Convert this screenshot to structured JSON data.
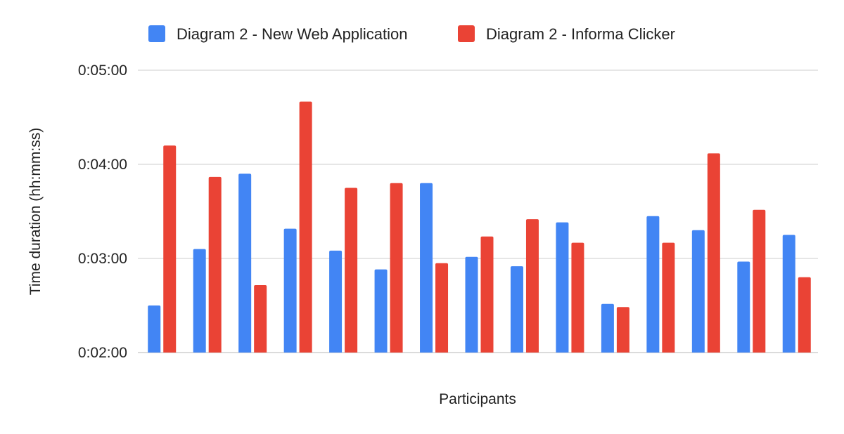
{
  "chart_data": {
    "type": "bar",
    "categories": [
      "",
      "",
      "",
      "",
      "",
      "",
      "",
      "",
      "",
      "",
      "",
      "",
      "",
      "",
      ""
    ],
    "series": [
      {
        "name": "Diagram 2 - New Web Application",
        "color": "#4285F4",
        "values": [
          "0:02:30",
          "0:03:06",
          "0:03:54",
          "0:03:19",
          "0:03:05",
          "0:02:53",
          "0:03:48",
          "0:03:01",
          "0:02:55",
          "0:03:23",
          "0:02:31",
          "0:03:27",
          "0:03:18",
          "0:02:58",
          "0:03:15"
        ]
      },
      {
        "name": "Diagram 2 - Informa Clicker",
        "color": "#EA4335",
        "values": [
          "0:04:12",
          "0:03:52",
          "0:02:43",
          "0:04:40",
          "0:03:45",
          "0:03:48",
          "0:02:57",
          "0:03:14",
          "0:03:25",
          "0:03:10",
          "0:02:29",
          "0:03:10",
          "0:04:07",
          "0:03:31",
          "0:02:48"
        ]
      }
    ],
    "xlabel": "Participants",
    "ylabel": "Time duration (hh:mm:ss)",
    "ylim": [
      "0:02:00",
      "0:05:00"
    ],
    "yticks": [
      "0:02:00",
      "0:03:00",
      "0:04:00",
      "0:05:00"
    ],
    "grid": true,
    "legend_position": "top"
  }
}
